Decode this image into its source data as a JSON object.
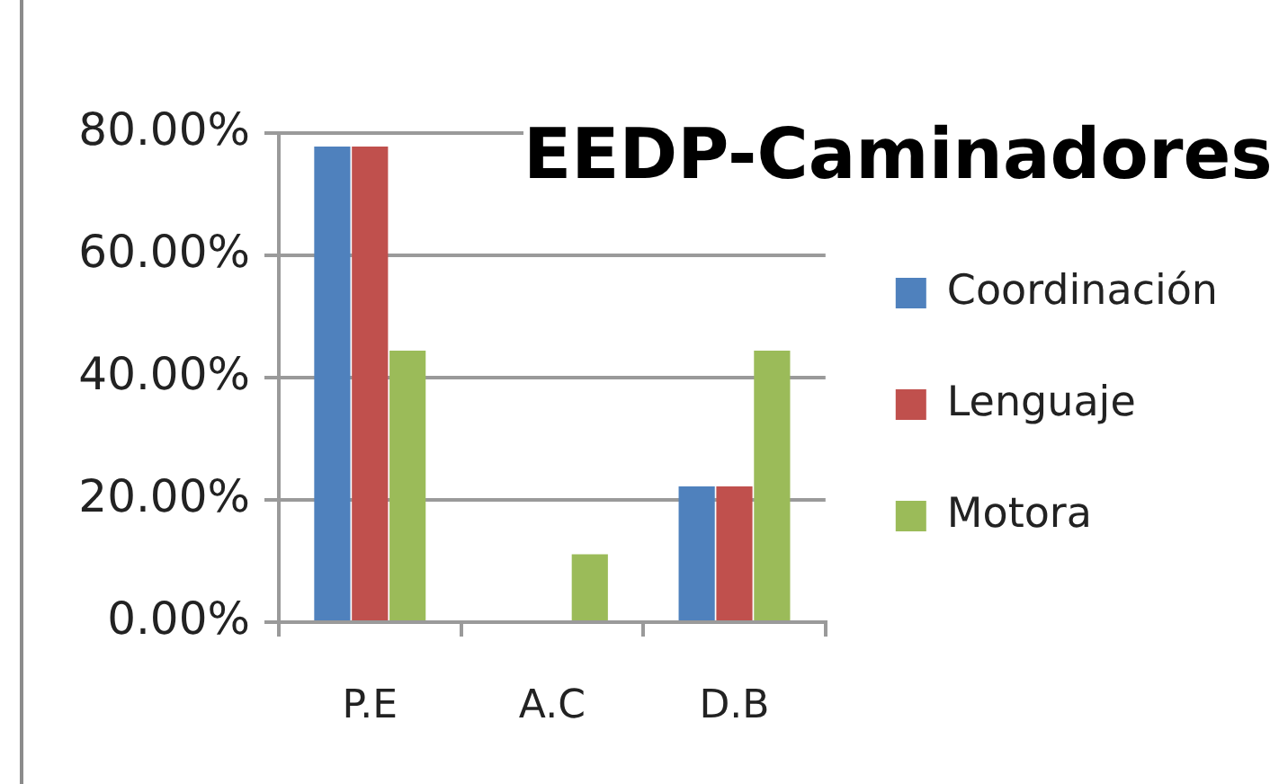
{
  "chart_data": {
    "type": "bar",
    "title": "EEDP-Caminadores",
    "categories": [
      "P.E",
      "A.C",
      "D.B"
    ],
    "series": [
      {
        "name": "Coordinación",
        "color": "#4f81bd",
        "values": [
          77.8,
          0,
          22.2
        ]
      },
      {
        "name": "Lenguaje",
        "color": "#c0504d",
        "values": [
          77.8,
          0,
          22.2
        ]
      },
      {
        "name": "Motora",
        "color": "#9bbb59",
        "values": [
          44.4,
          11.1,
          44.4
        ]
      }
    ],
    "ylim": [
      0,
      80
    ],
    "yticks": [
      {
        "value": 0,
        "label": "0.00%"
      },
      {
        "value": 20,
        "label": "20.00%"
      },
      {
        "value": 40,
        "label": "40.00%"
      },
      {
        "value": 60,
        "label": "60.00%"
      },
      {
        "value": 80,
        "label": "80.00%"
      }
    ],
    "grid": "y",
    "legend": "right"
  }
}
